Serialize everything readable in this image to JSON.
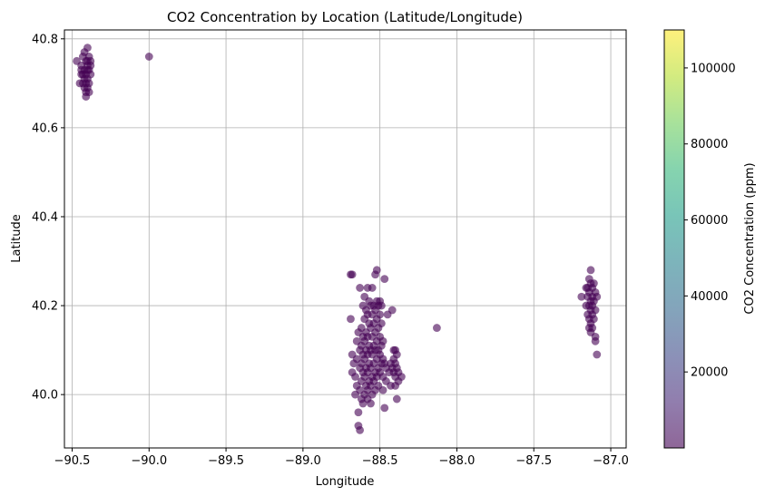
{
  "chart_data": {
    "type": "scatter",
    "title": "CO2 Concentration by Location (Latitude/Longitude)",
    "xlabel": "Longitude",
    "ylabel": "Latitude",
    "xlim": [
      -90.55,
      -86.9
    ],
    "ylim": [
      39.88,
      40.82
    ],
    "xticks": [
      -90.5,
      -90.0,
      -89.5,
      -89.0,
      -88.5,
      -88.0,
      -87.5,
      -87.0
    ],
    "xtick_labels": [
      "−90.5",
      "−90.0",
      "−89.5",
      "−89.0",
      "−88.5",
      "−88.0",
      "−87.5",
      "−87.0"
    ],
    "yticks": [
      40.0,
      40.2,
      40.4,
      40.6,
      40.8
    ],
    "ytick_labels": [
      "40.0",
      "40.2",
      "40.4",
      "40.6",
      "40.8"
    ],
    "grid": true,
    "marker_color": "#440154",
    "marker_alpha": 0.6,
    "colorbar": {
      "label": "CO2 Concentration (ppm)",
      "range": [
        0,
        110000
      ],
      "ticks": [
        20000,
        40000,
        60000,
        80000,
        100000
      ],
      "tick_labels": [
        "20000",
        "40000",
        "60000",
        "80000",
        "100000"
      ],
      "colormap": "viridis",
      "alpha": 0.6,
      "stops": [
        "#440154",
        "#482878",
        "#3e4989",
        "#31688e",
        "#26828e",
        "#1f9e89",
        "#35b779",
        "#6ece58",
        "#b5de2b",
        "#fde725"
      ]
    },
    "points": [
      [
        -90.47,
        40.75
      ],
      [
        -90.45,
        40.7
      ],
      [
        -90.44,
        40.72
      ],
      [
        -90.44,
        40.74
      ],
      [
        -90.43,
        40.76
      ],
      [
        -90.43,
        40.7
      ],
      [
        -90.42,
        40.77
      ],
      [
        -90.42,
        40.73
      ],
      [
        -90.42,
        40.71
      ],
      [
        -90.42,
        40.69
      ],
      [
        -90.41,
        40.75
      ],
      [
        -90.41,
        40.72
      ],
      [
        -90.41,
        40.68
      ],
      [
        -90.41,
        40.67
      ],
      [
        -90.4,
        40.78
      ],
      [
        -90.4,
        40.74
      ],
      [
        -90.4,
        40.71
      ],
      [
        -90.4,
        40.69
      ],
      [
        -90.39,
        40.76
      ],
      [
        -90.39,
        40.73
      ],
      [
        -90.39,
        40.7
      ],
      [
        -90.39,
        40.68
      ],
      [
        -90.38,
        40.75
      ],
      [
        -90.38,
        40.72
      ],
      [
        -90.38,
        40.74
      ],
      [
        -90.44,
        40.73
      ],
      [
        -90.43,
        40.72
      ],
      [
        -90.4,
        40.73
      ],
      [
        -90.41,
        40.7
      ],
      [
        -90.4,
        40.75
      ],
      [
        -90.0,
        40.76
      ],
      [
        -88.69,
        40.27
      ],
      [
        -88.69,
        40.17
      ],
      [
        -88.68,
        40.27
      ],
      [
        -88.68,
        40.09
      ],
      [
        -88.68,
        40.05
      ],
      [
        -88.67,
        40.07
      ],
      [
        -88.66,
        40.04
      ],
      [
        -88.66,
        40.0
      ],
      [
        -88.65,
        40.12
      ],
      [
        -88.65,
        40.08
      ],
      [
        -88.65,
        40.02
      ],
      [
        -88.64,
        40.14
      ],
      [
        -88.64,
        39.96
      ],
      [
        -88.64,
        39.93
      ],
      [
        -88.63,
        40.24
      ],
      [
        -88.63,
        40.1
      ],
      [
        -88.63,
        40.06
      ],
      [
        -88.63,
        40.01
      ],
      [
        -88.63,
        39.92
      ],
      [
        -88.62,
        40.15
      ],
      [
        -88.62,
        40.11
      ],
      [
        -88.62,
        40.07
      ],
      [
        -88.62,
        40.03
      ],
      [
        -88.62,
        39.99
      ],
      [
        -88.61,
        40.2
      ],
      [
        -88.61,
        40.13
      ],
      [
        -88.61,
        40.09
      ],
      [
        -88.61,
        40.05
      ],
      [
        -88.61,
        39.98
      ],
      [
        -88.6,
        40.22
      ],
      [
        -88.6,
        40.17
      ],
      [
        -88.6,
        40.12
      ],
      [
        -88.6,
        40.08
      ],
      [
        -88.6,
        40.04
      ],
      [
        -88.6,
        40.0
      ],
      [
        -88.59,
        40.19
      ],
      [
        -88.59,
        40.14
      ],
      [
        -88.59,
        40.1
      ],
      [
        -88.59,
        40.06
      ],
      [
        -88.59,
        40.02
      ],
      [
        -88.58,
        40.24
      ],
      [
        -88.58,
        40.18
      ],
      [
        -88.58,
        40.13
      ],
      [
        -88.58,
        40.09
      ],
      [
        -88.58,
        40.05
      ],
      [
        -88.58,
        40.01
      ],
      [
        -88.58,
        39.99
      ],
      [
        -88.57,
        40.21
      ],
      [
        -88.57,
        40.16
      ],
      [
        -88.57,
        40.11
      ],
      [
        -88.57,
        40.07
      ],
      [
        -88.57,
        40.03
      ],
      [
        -88.56,
        40.2
      ],
      [
        -88.56,
        40.15
      ],
      [
        -88.56,
        40.1
      ],
      [
        -88.56,
        40.06
      ],
      [
        -88.56,
        40.02
      ],
      [
        -88.56,
        39.98
      ],
      [
        -88.55,
        40.24
      ],
      [
        -88.55,
        40.18
      ],
      [
        -88.55,
        40.13
      ],
      [
        -88.55,
        40.09
      ],
      [
        -88.55,
        40.04
      ],
      [
        -88.55,
        40.0
      ],
      [
        -88.54,
        40.2
      ],
      [
        -88.54,
        40.16
      ],
      [
        -88.54,
        40.11
      ],
      [
        -88.54,
        40.07
      ],
      [
        -88.54,
        40.03
      ],
      [
        -88.53,
        40.27
      ],
      [
        -88.53,
        40.19
      ],
      [
        -88.53,
        40.14
      ],
      [
        -88.53,
        40.1
      ],
      [
        -88.53,
        40.05
      ],
      [
        -88.53,
        40.01
      ],
      [
        -88.52,
        40.28
      ],
      [
        -88.52,
        40.21
      ],
      [
        -88.52,
        40.17
      ],
      [
        -88.52,
        40.12
      ],
      [
        -88.52,
        40.08
      ],
      [
        -88.52,
        40.04
      ],
      [
        -88.51,
        40.2
      ],
      [
        -88.51,
        40.15
      ],
      [
        -88.51,
        40.1
      ],
      [
        -88.51,
        40.06
      ],
      [
        -88.51,
        40.02
      ],
      [
        -88.5,
        40.21
      ],
      [
        -88.5,
        40.18
      ],
      [
        -88.5,
        40.13
      ],
      [
        -88.5,
        40.09
      ],
      [
        -88.5,
        40.05
      ],
      [
        -88.49,
        40.2
      ],
      [
        -88.49,
        40.16
      ],
      [
        -88.49,
        40.11
      ],
      [
        -88.49,
        40.07
      ],
      [
        -88.48,
        40.12
      ],
      [
        -88.48,
        40.08
      ],
      [
        -88.48,
        40.04
      ],
      [
        -88.48,
        40.01
      ],
      [
        -88.47,
        40.26
      ],
      [
        -88.47,
        40.07
      ],
      [
        -88.47,
        39.97
      ],
      [
        -88.46,
        40.06
      ],
      [
        -88.46,
        40.03
      ],
      [
        -88.45,
        40.18
      ],
      [
        -88.44,
        40.05
      ],
      [
        -88.43,
        40.07
      ],
      [
        -88.43,
        40.02
      ],
      [
        -88.42,
        40.19
      ],
      [
        -88.42,
        40.06
      ],
      [
        -88.41,
        40.1
      ],
      [
        -88.41,
        40.08
      ],
      [
        -88.41,
        40.05
      ],
      [
        -88.4,
        40.1
      ],
      [
        -88.4,
        40.07
      ],
      [
        -88.4,
        40.04
      ],
      [
        -88.4,
        40.02
      ],
      [
        -88.39,
        40.09
      ],
      [
        -88.39,
        40.06
      ],
      [
        -88.39,
        39.99
      ],
      [
        -88.38,
        40.05
      ],
      [
        -88.38,
        40.03
      ],
      [
        -88.36,
        40.04
      ],
      [
        -88.13,
        40.15
      ],
      [
        -87.19,
        40.22
      ],
      [
        -87.16,
        40.24
      ],
      [
        -87.16,
        40.2
      ],
      [
        -87.15,
        40.22
      ],
      [
        -87.15,
        40.18
      ],
      [
        -87.14,
        40.26
      ],
      [
        -87.14,
        40.23
      ],
      [
        -87.14,
        40.2
      ],
      [
        -87.14,
        40.17
      ],
      [
        -87.14,
        40.15
      ],
      [
        -87.13,
        40.28
      ],
      [
        -87.13,
        40.25
      ],
      [
        -87.13,
        40.21
      ],
      [
        -87.13,
        40.19
      ],
      [
        -87.13,
        40.16
      ],
      [
        -87.13,
        40.14
      ],
      [
        -87.12,
        40.24
      ],
      [
        -87.12,
        40.22
      ],
      [
        -87.12,
        40.2
      ],
      [
        -87.12,
        40.18
      ],
      [
        -87.11,
        40.25
      ],
      [
        -87.11,
        40.21
      ],
      [
        -87.11,
        40.17
      ],
      [
        -87.1,
        40.23
      ],
      [
        -87.1,
        40.19
      ],
      [
        -87.1,
        40.13
      ],
      [
        -87.1,
        40.12
      ],
      [
        -87.09,
        40.22
      ],
      [
        -87.09,
        40.09
      ],
      [
        -87.15,
        40.24
      ],
      [
        -87.12,
        40.15
      ]
    ]
  }
}
